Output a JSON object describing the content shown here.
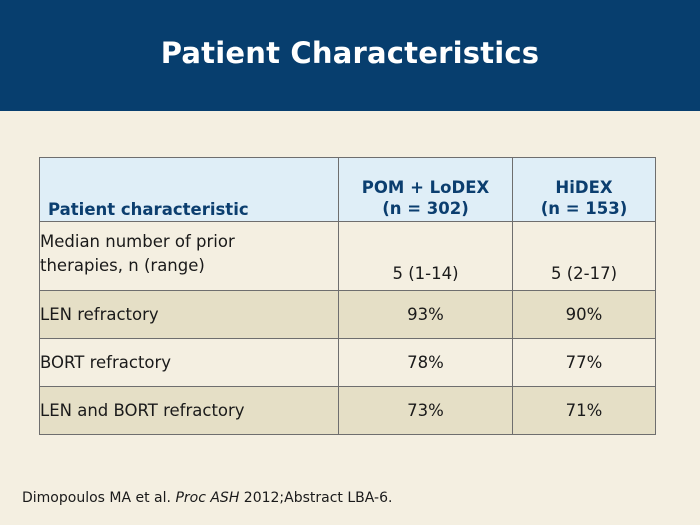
{
  "slide": {
    "title": "Patient Characteristics"
  },
  "table": {
    "header": {
      "col1": "Patient characteristic",
      "col2_line1": "POM + LoDEX",
      "col2_line2": "(n = 302)",
      "col3_line1": "HiDEX",
      "col3_line2": "(n = 153)"
    },
    "rows": [
      {
        "label_line1": "Median number of prior",
        "label_line2": "therapies, n (range)",
        "pom_lodex": "5 (1-14)",
        "hidex": "5 (2-17)"
      },
      {
        "label": "LEN refractory",
        "pom_lodex": "93%",
        "hidex": "90%"
      },
      {
        "label": "BORT refractory",
        "pom_lodex": "78%",
        "hidex": "77%"
      },
      {
        "label": "LEN and BORT refractory",
        "pom_lodex": "73%",
        "hidex": "71%"
      }
    ]
  },
  "footnote": {
    "authors": "Dimopoulos MA et al. ",
    "journal": "Proc ASH",
    "rest": " 2012;Abstract LBA-6."
  },
  "colors": {
    "header_bg": "#073e6e",
    "slide_bg": "#f4efe1",
    "table_header_bg": "#dfeef7",
    "row_shade": "#e5dfc6",
    "header_text": "#0b3e6f"
  }
}
